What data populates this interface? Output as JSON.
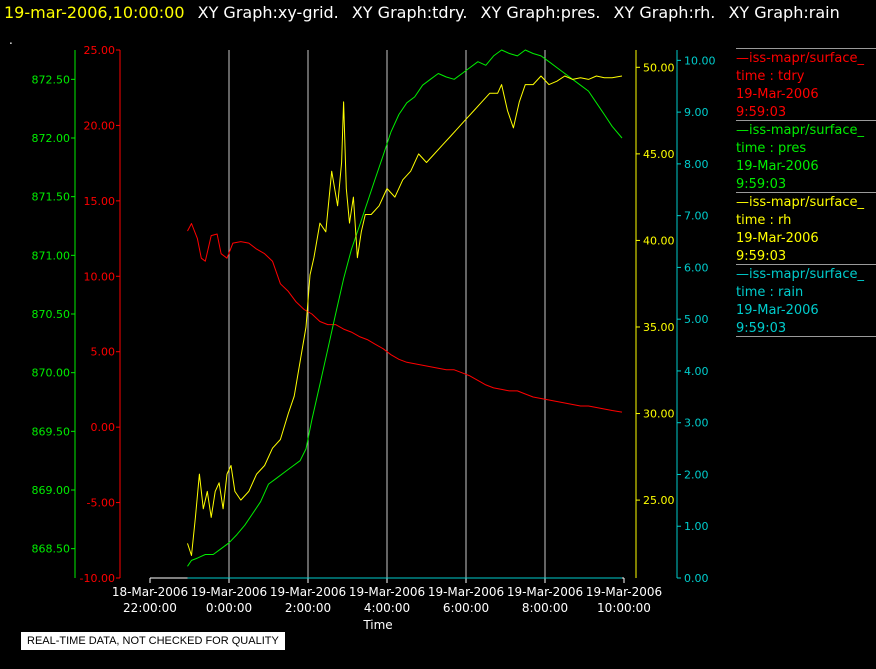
{
  "header": {
    "timestamp": "19-mar-2006,10:00:00",
    "graphs": [
      "XY Graph:xy-grid.",
      "XY Graph:tdry.",
      "XY Graph:pres.",
      "XY Graph:rh.",
      "XY Graph:rain"
    ],
    "dot": "."
  },
  "quality_notice": "REAL-TIME DATA, NOT CHECKED FOR QUALITY",
  "colors": {
    "tdry": "#ff0000",
    "pres": "#00ee00",
    "rh": "#ffff00",
    "rain": "#00cccc",
    "grid": "#c8c8c8"
  },
  "legend": [
    {
      "name": "—iss-mapr/surface_",
      "line2": "time : tdry",
      "line3": "19-Mar-2006",
      "line4": "9:59:03",
      "color": "#ff0000"
    },
    {
      "name": "—iss-mapr/surface_",
      "line2": "time : pres",
      "line3": "19-Mar-2006",
      "line4": "9:59:03",
      "color": "#00ee00"
    },
    {
      "name": "—iss-mapr/surface_",
      "line2": "time : rh",
      "line3": "19-Mar-2006",
      "line4": "9:59:03",
      "color": "#ffff00"
    },
    {
      "name": "—iss-mapr/surface_",
      "line2": "time : rain",
      "line3": "19-Mar-2006",
      "line4": "9:59:03",
      "color": "#00cccc"
    }
  ],
  "chart_data": {
    "type": "line",
    "xlabel": "Time",
    "x_ticks": [
      {
        "date": "18-Mar-2006",
        "time": "22:00:00",
        "hours": -2
      },
      {
        "date": "19-Mar-2006",
        "time": "0:00:00",
        "hours": 0
      },
      {
        "date": "19-Mar-2006",
        "time": "2:00:00",
        "hours": 2
      },
      {
        "date": "19-Mar-2006",
        "time": "4:00:00",
        "hours": 4
      },
      {
        "date": "19-Mar-2006",
        "time": "6:00:00",
        "hours": 6
      },
      {
        "date": "19-Mar-2006",
        "time": "8:00:00",
        "hours": 8
      },
      {
        "date": "19-Mar-2006",
        "time": "10:00:00",
        "hours": 10
      }
    ],
    "xlim_hours": [
      -2,
      10
    ],
    "grid": "vertical",
    "axes": {
      "tdry": {
        "ylim": [
          -10,
          25
        ],
        "ticks": [
          "-10.00",
          "-5.00",
          "0.00",
          "5.00",
          "10.00",
          "15.00",
          "20.00",
          "25.00"
        ]
      },
      "pres": {
        "ylim": [
          868.25,
          872.75
        ],
        "ticks": [
          "868.50",
          "869.00",
          "869.50",
          "870.00",
          "870.50",
          "871.00",
          "871.50",
          "872.00",
          "872.50"
        ]
      },
      "rh": {
        "ylim": [
          20.5,
          51
        ],
        "ticks": [
          "25.00",
          "30.00",
          "35.00",
          "40.00",
          "45.00",
          "50.00"
        ]
      },
      "rain": {
        "ylim": [
          0,
          10.2
        ],
        "ticks": [
          "0.00",
          "1.00",
          "2.00",
          "3.00",
          "4.00",
          "5.00",
          "6.00",
          "7.00",
          "8.00",
          "9.00",
          "10.00"
        ]
      }
    },
    "series": [
      {
        "name": "tdry",
        "x": [
          -1.05,
          -0.95,
          -0.8,
          -0.7,
          -0.6,
          -0.45,
          -0.3,
          -0.2,
          -0.05,
          0.1,
          0.3,
          0.5,
          0.7,
          0.9,
          1.1,
          1.3,
          1.5,
          1.7,
          1.9,
          2.1,
          2.3,
          2.5,
          2.7,
          2.9,
          3.1,
          3.3,
          3.5,
          3.7,
          3.9,
          4.1,
          4.3,
          4.5,
          4.7,
          4.9,
          5.1,
          5.3,
          5.5,
          5.7,
          5.9,
          6.1,
          6.3,
          6.5,
          6.7,
          6.9,
          7.1,
          7.3,
          7.5,
          7.7,
          7.9,
          8.1,
          8.3,
          8.5,
          8.7,
          8.9,
          9.1,
          9.3,
          9.5,
          9.7,
          9.95
        ],
        "y": [
          13.0,
          13.5,
          12.5,
          11.2,
          11.0,
          12.7,
          12.8,
          11.5,
          11.2,
          12.2,
          12.3,
          12.2,
          11.8,
          11.5,
          11.0,
          9.5,
          9.0,
          8.3,
          7.8,
          7.5,
          7.0,
          6.8,
          6.8,
          6.5,
          6.3,
          6.0,
          5.8,
          5.5,
          5.2,
          4.8,
          4.5,
          4.3,
          4.2,
          4.1,
          4.0,
          3.9,
          3.8,
          3.8,
          3.6,
          3.4,
          3.1,
          2.8,
          2.6,
          2.5,
          2.4,
          2.4,
          2.2,
          2.0,
          1.9,
          1.8,
          1.7,
          1.6,
          1.5,
          1.4,
          1.4,
          1.3,
          1.2,
          1.1,
          1.0
        ]
      },
      {
        "name": "pres",
        "x": [
          -1.05,
          -0.95,
          -0.8,
          -0.6,
          -0.4,
          -0.2,
          0.0,
          0.2,
          0.4,
          0.6,
          0.8,
          1.0,
          1.2,
          1.4,
          1.6,
          1.8,
          1.95,
          2.1,
          2.3,
          2.5,
          2.7,
          2.9,
          3.1,
          3.3,
          3.5,
          3.7,
          3.9,
          4.1,
          4.3,
          4.5,
          4.7,
          4.9,
          5.1,
          5.3,
          5.5,
          5.7,
          5.9,
          6.1,
          6.3,
          6.5,
          6.7,
          6.9,
          7.1,
          7.3,
          7.5,
          7.7,
          7.9,
          8.1,
          8.3,
          8.5,
          8.7,
          8.9,
          9.1,
          9.3,
          9.5,
          9.7,
          9.95
        ],
        "y": [
          868.35,
          868.4,
          868.42,
          868.45,
          868.45,
          868.5,
          868.55,
          868.62,
          868.7,
          868.8,
          868.9,
          869.05,
          869.1,
          869.15,
          869.2,
          869.25,
          869.35,
          869.6,
          869.9,
          870.2,
          870.5,
          870.8,
          871.05,
          871.25,
          871.45,
          871.65,
          871.85,
          872.05,
          872.2,
          872.3,
          872.35,
          872.45,
          872.5,
          872.55,
          872.52,
          872.5,
          872.55,
          872.6,
          872.65,
          872.62,
          872.7,
          872.75,
          872.72,
          872.7,
          872.75,
          872.72,
          872.7,
          872.65,
          872.6,
          872.55,
          872.5,
          872.45,
          872.4,
          872.3,
          872.2,
          872.1,
          872.0
        ]
      },
      {
        "name": "rh",
        "x": [
          -1.05,
          -0.95,
          -0.85,
          -0.75,
          -0.65,
          -0.55,
          -0.45,
          -0.35,
          -0.25,
          -0.15,
          -0.05,
          0.05,
          0.15,
          0.3,
          0.5,
          0.7,
          0.9,
          1.1,
          1.3,
          1.5,
          1.65,
          1.8,
          1.95,
          2.05,
          2.15,
          2.3,
          2.45,
          2.6,
          2.75,
          2.85,
          2.9,
          2.97,
          3.05,
          3.15,
          3.25,
          3.35,
          3.45,
          3.6,
          3.8,
          4.0,
          4.2,
          4.4,
          4.6,
          4.8,
          5.0,
          5.2,
          5.4,
          5.6,
          5.8,
          6.0,
          6.2,
          6.4,
          6.6,
          6.8,
          6.9,
          7.05,
          7.2,
          7.35,
          7.5,
          7.7,
          7.9,
          8.1,
          8.3,
          8.5,
          8.7,
          8.9,
          9.1,
          9.3,
          9.5,
          9.7,
          9.95
        ],
        "y": [
          22.5,
          21.8,
          24.0,
          26.5,
          24.5,
          25.5,
          24.0,
          25.5,
          26.0,
          24.5,
          26.5,
          27.0,
          25.5,
          25.0,
          25.5,
          26.5,
          27.0,
          28.0,
          28.5,
          30.0,
          31.0,
          33.0,
          35.0,
          38.0,
          39.0,
          41.0,
          40.5,
          44.0,
          42.0,
          44.5,
          48.0,
          43.0,
          41.0,
          42.5,
          39.0,
          40.5,
          41.5,
          41.5,
          42.0,
          43.0,
          42.5,
          43.5,
          44.0,
          45.0,
          44.5,
          45.0,
          45.5,
          46.0,
          46.5,
          47.0,
          47.5,
          48.0,
          48.5,
          48.5,
          49.0,
          47.5,
          46.5,
          48.0,
          49.0,
          49.0,
          49.5,
          49.0,
          49.2,
          49.5,
          49.3,
          49.4,
          49.3,
          49.5,
          49.4,
          49.4,
          49.5
        ]
      },
      {
        "name": "rain",
        "x": [
          -1.05,
          9.95
        ],
        "y": [
          0.0,
          0.0
        ]
      }
    ]
  }
}
